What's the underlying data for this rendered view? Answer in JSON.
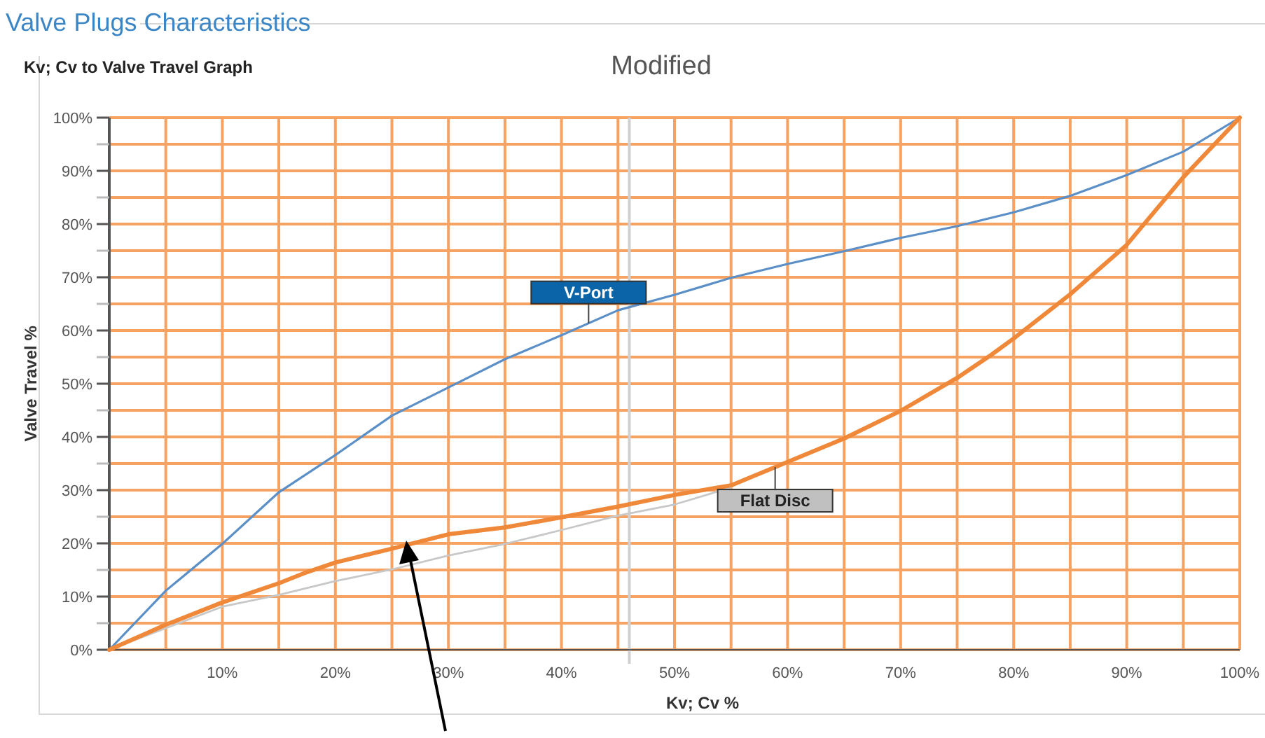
{
  "chart_data": {
    "type": "line",
    "title": "Valve Plugs Characteristics",
    "subtitle": "Kv; Cv to Valve Travel Graph",
    "annotations": [
      "Modified"
    ],
    "xlabel": "Kv; Cv %",
    "ylabel": "Valve Travel %",
    "xlim": [
      0,
      100
    ],
    "ylim": [
      0,
      100
    ],
    "xticks": [
      {
        "value": 0,
        "label": null
      },
      {
        "value": 5,
        "label": null
      },
      {
        "value": 10,
        "label": "10%"
      },
      {
        "value": 15,
        "label": null
      },
      {
        "value": 20,
        "label": "20%"
      },
      {
        "value": 25,
        "label": null
      },
      {
        "value": 30,
        "label": "30%"
      },
      {
        "value": 35,
        "label": null
      },
      {
        "value": 40,
        "label": "40%"
      },
      {
        "value": 45,
        "label": null
      },
      {
        "value": 50,
        "label": "50%"
      },
      {
        "value": 55,
        "label": null
      },
      {
        "value": 60,
        "label": "60%"
      },
      {
        "value": 65,
        "label": null
      },
      {
        "value": 70,
        "label": "70%"
      },
      {
        "value": 75,
        "label": null
      },
      {
        "value": 80,
        "label": "80%"
      },
      {
        "value": 85,
        "label": null
      },
      {
        "value": 90,
        "label": "90%"
      },
      {
        "value": 95,
        "label": null
      },
      {
        "value": 100,
        "label": "100%"
      }
    ],
    "yticks": [
      {
        "value": 0,
        "label": "0%"
      },
      {
        "value": 5,
        "label": null
      },
      {
        "value": 10,
        "label": "10%"
      },
      {
        "value": 15,
        "label": null
      },
      {
        "value": 20,
        "label": "20%"
      },
      {
        "value": 25,
        "label": null
      },
      {
        "value": 30,
        "label": "30%"
      },
      {
        "value": 35,
        "label": null
      },
      {
        "value": 40,
        "label": "40%"
      },
      {
        "value": 45,
        "label": null
      },
      {
        "value": 50,
        "label": "50%"
      },
      {
        "value": 55,
        "label": null
      },
      {
        "value": 60,
        "label": "60%"
      },
      {
        "value": 65,
        "label": null
      },
      {
        "value": 70,
        "label": "70%"
      },
      {
        "value": 75,
        "label": null
      },
      {
        "value": 80,
        "label": "80%"
      },
      {
        "value": 85,
        "label": null
      },
      {
        "value": 90,
        "label": "90%"
      },
      {
        "value": 95,
        "label": null
      },
      {
        "value": 100,
        "label": "100%"
      }
    ],
    "grid": true,
    "marker": "none",
    "ref_lines": [
      {
        "axis": "x",
        "value": 46,
        "color": "#d0d0d0"
      }
    ],
    "series": [
      {
        "color": "#c8c8c8",
        "x": [
          0,
          10,
          15,
          20,
          25,
          30,
          35,
          40,
          45,
          50,
          55
        ],
        "values": [
          0,
          8.1,
          10.3,
          12.9,
          15.1,
          17.7,
          19.9,
          22.5,
          25.2,
          27.3,
          30.5
        ]
      },
      {
        "name": "V-Port",
        "color": "#5b8fc7",
        "x": [
          0,
          5,
          10,
          15,
          20,
          25,
          30,
          35,
          40,
          45,
          50,
          55,
          60,
          65,
          70,
          75,
          80,
          85,
          90,
          95,
          100
        ],
        "values": [
          0,
          11.1,
          19.9,
          29.6,
          36.6,
          44,
          49.3,
          54.6,
          59.1,
          63.8,
          66.7,
          69.9,
          72.5,
          74.9,
          77.4,
          79.6,
          82.2,
          85.3,
          89.2,
          93.6,
          100
        ]
      },
      {
        "name": "Flat Disc",
        "color": "#f0883a",
        "x": [
          0,
          5,
          10,
          15,
          17.5,
          20,
          25,
          30,
          35,
          40,
          45,
          50,
          55,
          60,
          65,
          70,
          75,
          78,
          80,
          85,
          90,
          95,
          100
        ],
        "values": [
          0,
          4.7,
          8.9,
          12.5,
          14.6,
          16.4,
          19,
          21.7,
          23,
          24.9,
          26.9,
          29.1,
          30.9,
          35.3,
          39.7,
          44.9,
          51.1,
          55.4,
          58.5,
          66.8,
          76.1,
          88.8,
          100
        ]
      }
    ]
  }
}
